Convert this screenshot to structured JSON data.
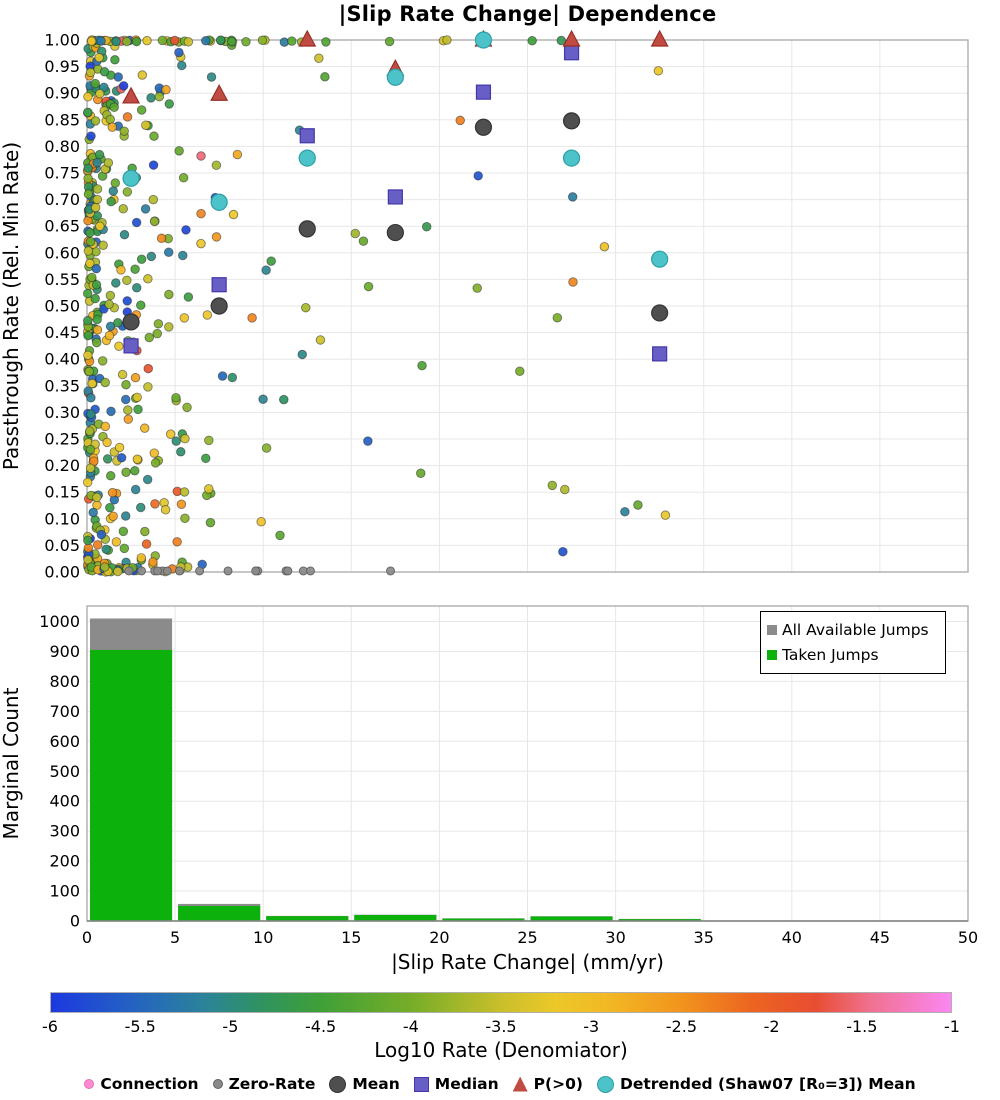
{
  "title": "|Slip Rate Change| Dependence",
  "chart_data": [
    {
      "type": "scatter",
      "title": "|Slip Rate Change| Dependence",
      "xlabel": "",
      "ylabel": "Passthrough Rate (Rel. Min Rate)",
      "xlim": [
        0,
        50
      ],
      "ylim": [
        0.0,
        1.0
      ],
      "grid": true,
      "y_ticks": [
        "0.00",
        "0.05",
        "0.10",
        "0.15",
        "0.20",
        "0.25",
        "0.30",
        "0.35",
        "0.40",
        "0.45",
        "0.50",
        "0.55",
        "0.60",
        "0.65",
        "0.70",
        "0.75",
        "0.80",
        "0.85",
        "0.90",
        "0.95",
        "1.00"
      ],
      "x_gridlines": [
        5,
        10,
        15,
        20,
        25,
        30,
        35,
        40,
        45
      ],
      "series": [
        {
          "name": "Mean",
          "marker": "circle",
          "fill": "#4f4f4f",
          "edge": "#333333",
          "size": 8,
          "x": [
            2.5,
            7.5,
            12.5,
            17.5,
            22.5,
            27.5,
            32.5
          ],
          "y": [
            0.47,
            0.5,
            0.645,
            0.638,
            0.836,
            0.848,
            0.487
          ]
        },
        {
          "name": "Median",
          "marker": "square",
          "fill": "#675fc6",
          "edge": "#4238a8",
          "size": 14,
          "x": [
            2.5,
            7.5,
            12.5,
            17.5,
            22.5,
            27.5,
            32.5
          ],
          "y": [
            0.425,
            0.54,
            0.82,
            0.705,
            0.902,
            0.976,
            0.41
          ]
        },
        {
          "name": "P(>0)",
          "marker": "triangle",
          "fill": "#bf4b42",
          "edge": "#992e26",
          "size": 16,
          "x": [
            2.5,
            7.5,
            12.5,
            17.5,
            22.5,
            27.5,
            32.5
          ],
          "y": [
            0.893,
            0.898,
            1.0,
            0.945,
            1.0,
            1.0,
            1.0
          ]
        },
        {
          "name": "Detrended (Shaw07 [R₀=3]) Mean",
          "marker": "circle",
          "fill": "#4cc3c9",
          "edge": "#2d9fa8",
          "size": 8,
          "x": [
            2.5,
            7.5,
            12.5,
            17.5,
            22.5,
            27.5,
            32.5
          ],
          "y": [
            0.74,
            0.695,
            0.778,
            0.93,
            1.0,
            0.778,
            0.588
          ]
        }
      ],
      "background_scatter": {
        "seed": 20240613,
        "dot_radius": 4.3,
        "left_column": {
          "count": 170,
          "x_min": 0.04,
          "x_span": 0.6,
          "x_pow": 1.7
        },
        "cloud": {
          "count": 240,
          "x_offset": 0.5,
          "tau": 3.0,
          "x_max": 34
        },
        "far_cloud": {
          "count": 26,
          "x_min": 5,
          "x_span": 28
        },
        "top_row": {
          "count": 42,
          "tau": 6.5,
          "x_max": 27.5,
          "y": 0.998
        },
        "bottom_row": {
          "count": 26,
          "tau": 3.5,
          "x_max": 13,
          "y": 0.01
        },
        "zero_rate_row": {
          "count": 16,
          "x_min": 1.3,
          "x_span": 16.5,
          "color": "#8a8a8a",
          "edge": "#5f5f5f"
        },
        "value_bands": [
          [
            0.0,
            0.1,
            -6.0,
            -5.3
          ],
          [
            0.1,
            0.52,
            -5.3,
            -4.0
          ],
          [
            0.52,
            0.86,
            -4.0,
            -3.1
          ],
          [
            0.86,
            0.97,
            -3.1,
            -2.3
          ],
          [
            0.97,
            1.0,
            -2.3,
            -1.5
          ]
        ]
      }
    },
    {
      "type": "bar",
      "xlabel": "|Slip Rate Change| (mm/yr)",
      "ylabel": "Marginal Count",
      "xlim": [
        0,
        50
      ],
      "ylim": [
        0,
        1052
      ],
      "grid": true,
      "bin_edges": [
        0,
        5,
        10,
        15,
        20,
        25,
        30,
        35
      ],
      "y_ticks": [
        "0",
        "100",
        "200",
        "300",
        "400",
        "500",
        "600",
        "700",
        "800",
        "900",
        "1000"
      ],
      "x_ticks": [
        "0",
        "5",
        "10",
        "15",
        "20",
        "25",
        "30",
        "35",
        "40",
        "45",
        "50"
      ],
      "series": [
        {
          "name": "All Available Jumps",
          "color": "#8b8b8b",
          "values": [
            1010,
            57,
            17,
            21,
            9,
            16,
            7
          ]
        },
        {
          "name": "Taken Jumps",
          "color": "#0cb10c",
          "values": [
            905,
            50,
            16,
            20,
            8,
            15,
            6
          ]
        }
      ],
      "legend_position": "top-right"
    }
  ],
  "colorbar": {
    "label": "Log10 Rate (Denomiator)",
    "min": -6,
    "max": -1,
    "ticks": [
      "-6",
      "-5.5",
      "-5",
      "-4.5",
      "-4",
      "-3.5",
      "-3",
      "-2.5",
      "-2",
      "-1.5",
      "-1"
    ],
    "stops": [
      [
        0.0,
        "#1c39e0"
      ],
      [
        0.09,
        "#2462c2"
      ],
      [
        0.17,
        "#2b839a"
      ],
      [
        0.23,
        "#2e9263"
      ],
      [
        0.3,
        "#3fa037"
      ],
      [
        0.4,
        "#76ad28"
      ],
      [
        0.5,
        "#c9bf2b"
      ],
      [
        0.56,
        "#ecc829"
      ],
      [
        0.62,
        "#f2b824"
      ],
      [
        0.7,
        "#f2941d"
      ],
      [
        0.78,
        "#ec6420"
      ],
      [
        0.85,
        "#e84d33"
      ],
      [
        0.91,
        "#f0718f"
      ],
      [
        1.0,
        "#fb87f2"
      ]
    ]
  },
  "bottom_legend": {
    "items": [
      {
        "label": "Connection",
        "shape": "dot",
        "color": "#ff8ad2",
        "edge": "#e070b8",
        "size": 8
      },
      {
        "label": "Zero-Rate",
        "shape": "dot",
        "color": "#8a8a8a",
        "edge": "#5f5f5f",
        "size": 8
      },
      {
        "label": "Mean",
        "shape": "circle",
        "color": "#4f4f4f",
        "edge": "#333333",
        "size": 15
      },
      {
        "label": "Median",
        "shape": "square",
        "color": "#675fc6",
        "edge": "#4238a8",
        "size": 13
      },
      {
        "label": "P(>0)",
        "shape": "triangle",
        "color": "#bf4b42",
        "edge": "#992e26",
        "size": 15
      },
      {
        "label": "Detrended (Shaw07 [R₀=3]) Mean",
        "shape": "circle",
        "color": "#4cc3c9",
        "edge": "#2d9fa8",
        "size": 15
      }
    ]
  }
}
